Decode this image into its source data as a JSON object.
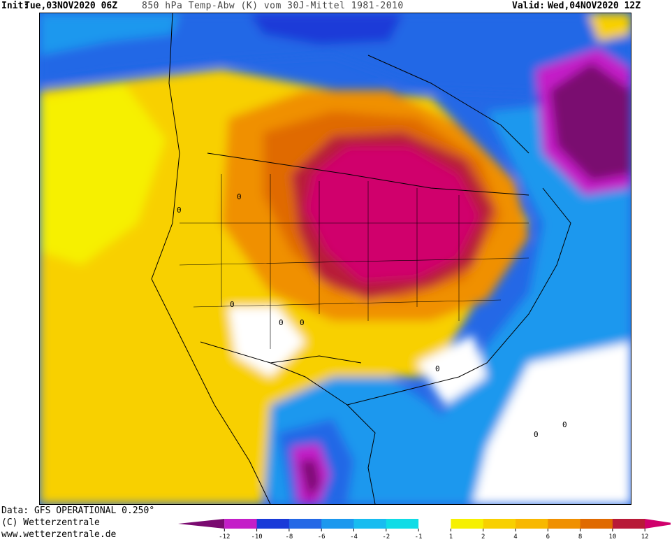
{
  "header": {
    "init_label": "Init:",
    "init_value": "Tue,03NOV2020 06Z",
    "title": "850 hPa Temp-Abw (K) vom 30J-Mittel 1981-2010",
    "valid_label": "Valid:",
    "valid_value": "Wed,04NOV2020 12Z"
  },
  "footer": {
    "data_source": "Data: GFS OPERATIONAL 0.250°",
    "copyright": "(C) Wetterzentrale",
    "website": "www.wetterzentrale.de"
  },
  "legend": {
    "ticks": [
      "-12",
      "-10",
      "-8",
      "-6",
      "-4",
      "-2",
      "-1",
      "1",
      "2",
      "4",
      "6",
      "8",
      "10",
      "12"
    ],
    "colors": [
      "#7a0a70",
      "#c41ec8",
      "#1a3ad8",
      "#2468e6",
      "#1c98ee",
      "#18bcf0",
      "#10dce6",
      "#ffffff",
      "#f6f000",
      "#f8d000",
      "#f8b800",
      "#f09000",
      "#e06a00",
      "#b81a38",
      "#d0006c"
    ]
  },
  "map": {
    "region": "North America",
    "field": "850 hPa temperature anomaly (K)",
    "contour_labels": [
      "0",
      "0",
      "0",
      "0",
      "0",
      "0",
      "0",
      "0"
    ]
  }
}
